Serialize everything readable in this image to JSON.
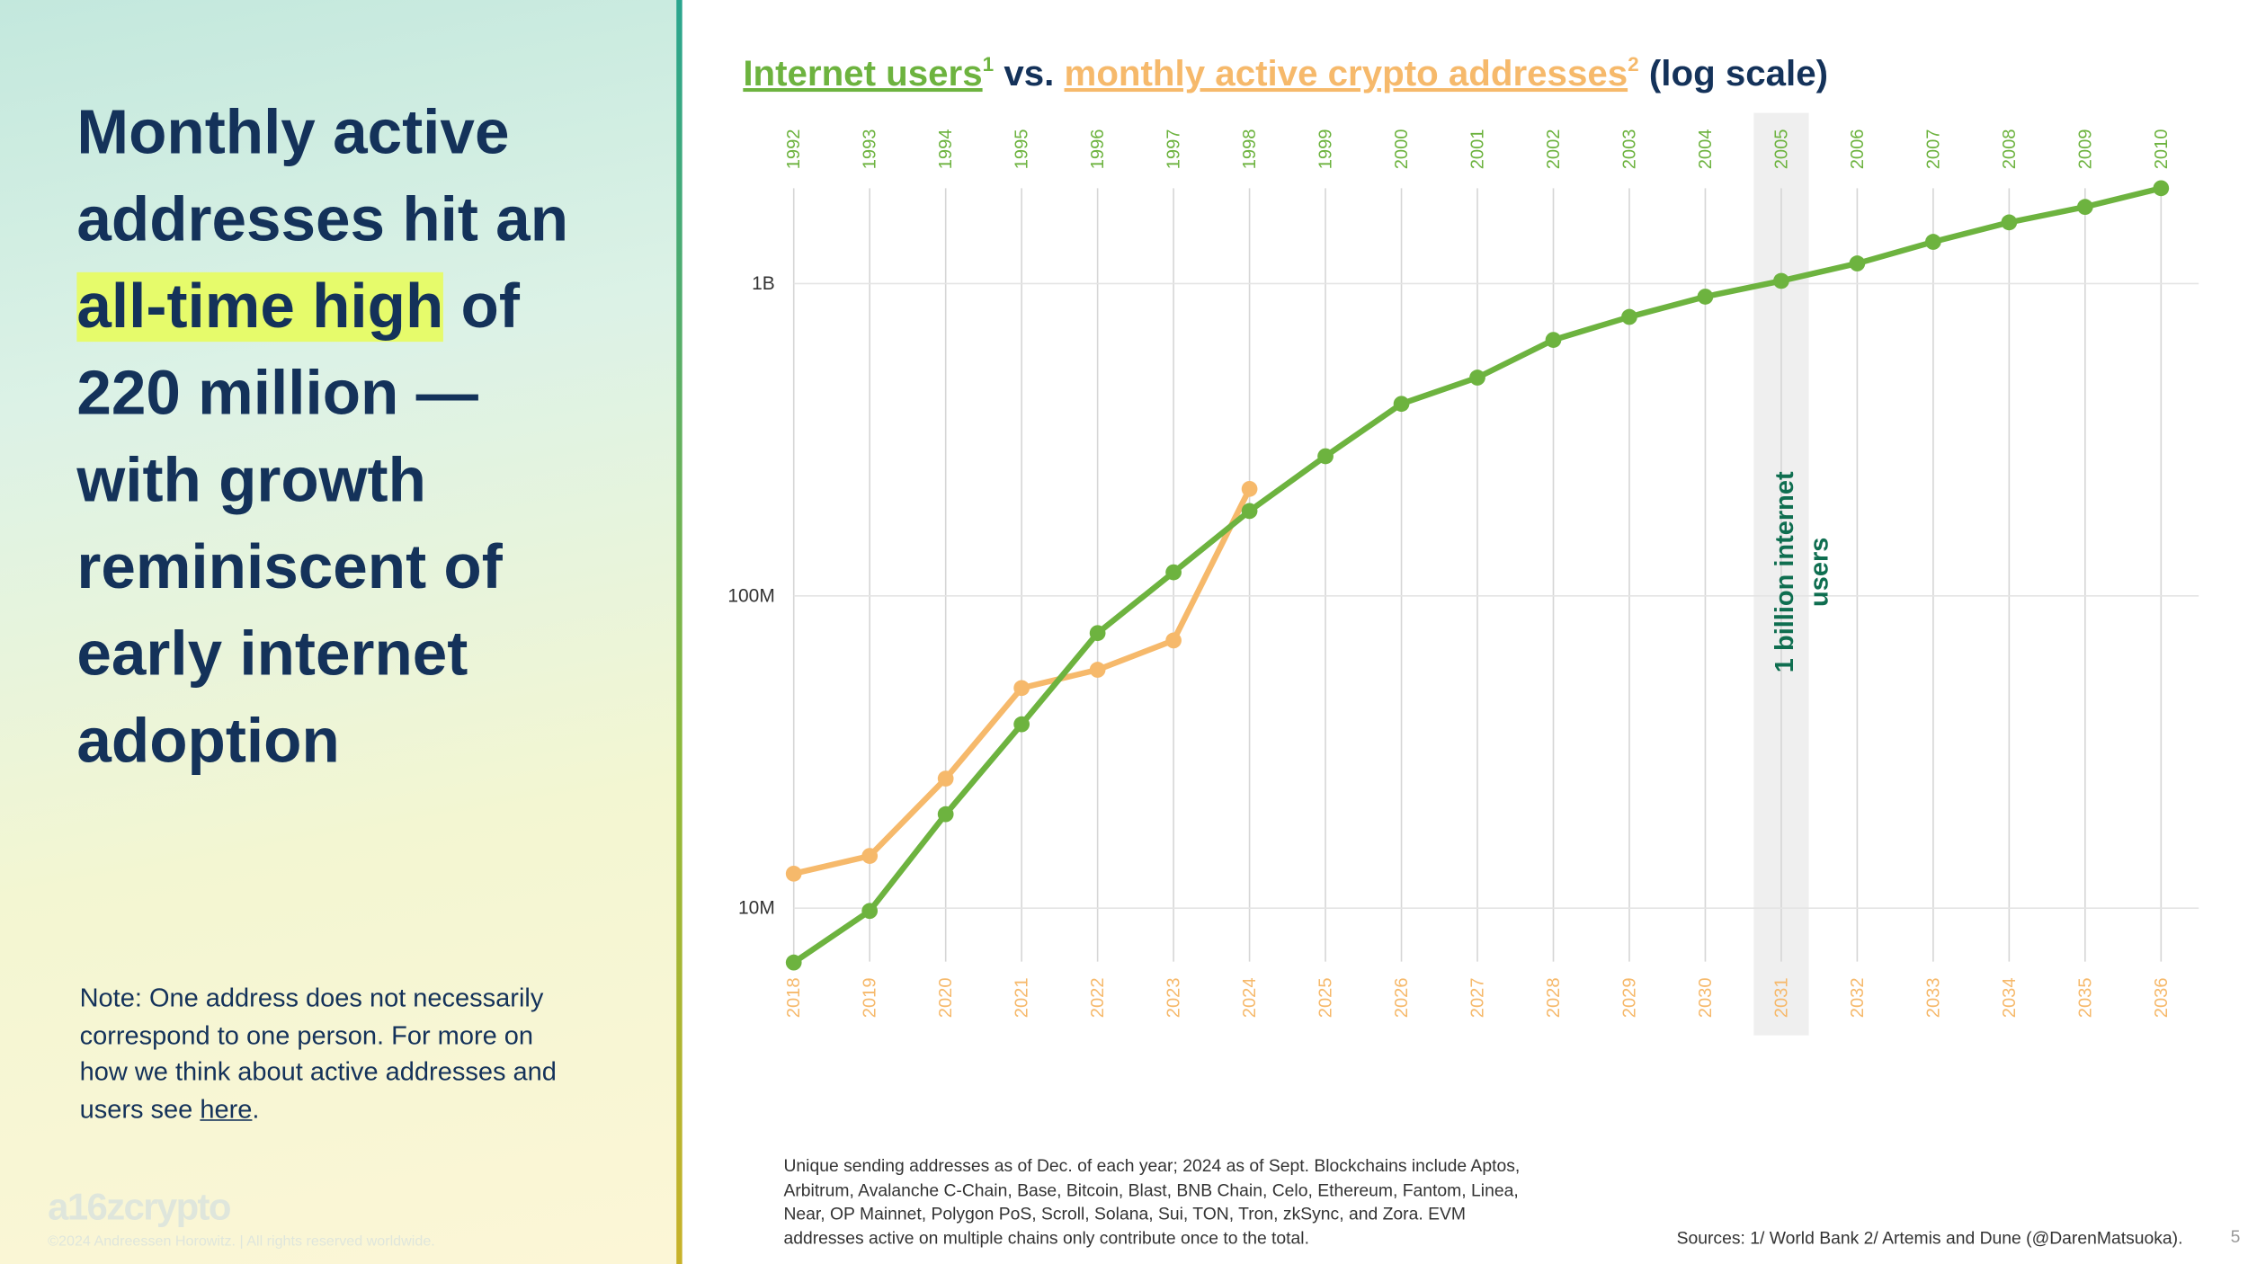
{
  "headline": [
    [
      "Monthly active"
    ],
    [
      "addresses hit an"
    ],
    [
      "all-time high",
      "of"
    ],
    [
      "220 million —"
    ],
    [
      "with growth"
    ],
    [
      "reminiscent of"
    ],
    [
      "early internet"
    ],
    [
      "adoption"
    ]
  ],
  "note": {
    "text": "Note: One address does not necessarily correspond to one person. For more on how we think about active addresses and users see",
    "link": "here",
    "end": "."
  },
  "logo": "a16zcrypto",
  "copyright": "©2024 Andreessen Horowitz. | All rights reserved worldwide.",
  "footnote": "Unique sending addresses as of Dec. of each year; 2024 as of Sept. Blockchains include Aptos, Arbitrum, Avalanche C-Chain, Base, Bitcoin, Blast, BNB Chain, Celo, Ethereum, Fantom, Linea, Near, OP Mainnet, Polygon PoS, Scroll, Solana, Sui, TON, Tron, zkSync, and Zora. EVM addresses active on multiple chains only contribute once to the total.",
  "sources": "Sources: 1/ World Bank 2/ Artemis and Dune (@DarenMatsuoka).",
  "page_number": "5",
  "chart_data": {
    "type": "line",
    "title": {
      "part1": "Internet users",
      "sup1": "1",
      "mid": " vs. ",
      "part2": "monthly active crypto addresses",
      "sup2": "2",
      "end": " (log scale)"
    },
    "categories": [
      "1992",
      "1993",
      "1994",
      "1995",
      "1996",
      "1997",
      "1998",
      "1999",
      "2000",
      "2001",
      "2002",
      "2003",
      "2004",
      "2005",
      "2006",
      "2007",
      "2008",
      "2009",
      "2010"
    ],
    "categories_bottom": [
      "2018",
      "2019",
      "2020",
      "2021",
      "2022",
      "2023",
      "2024",
      "2025",
      "2026",
      "2027",
      "2028",
      "2029",
      "2030",
      "2031",
      "2032",
      "2033",
      "2034",
      "2035",
      "2036"
    ],
    "series": [
      {
        "name": "Internet users",
        "color": "#6db33f",
        "x_axis": "top",
        "values": [
          6700000,
          9800000,
          20000000,
          38800000,
          76000000,
          119000000,
          187000000,
          280000000,
          412000000,
          500000000,
          660000000,
          782000000,
          908000000,
          1020000000,
          1160000000,
          1360000000,
          1570000000,
          1760000000,
          2020000000
        ]
      },
      {
        "name": "monthly active crypto addresses",
        "color": "#f6b96b",
        "x_axis": "bottom",
        "values": [
          12900000,
          14700000,
          26000000,
          50700000,
          58000000,
          72000000,
          220000000,
          null,
          null,
          null,
          null,
          null,
          null,
          null,
          null,
          null,
          null,
          null,
          null
        ]
      }
    ],
    "log_scale": true,
    "ylim": [
      6000000,
      2500000000
    ],
    "yticks": [
      {
        "value": 10000000,
        "label": "10M"
      },
      {
        "value": 100000000,
        "label": "100M"
      },
      {
        "value": 1000000000,
        "label": "1B"
      }
    ],
    "grid": true,
    "highlight": {
      "index": 13,
      "annotation": [
        "1 billion internet",
        "users"
      ],
      "color": "#0f6e50"
    }
  }
}
